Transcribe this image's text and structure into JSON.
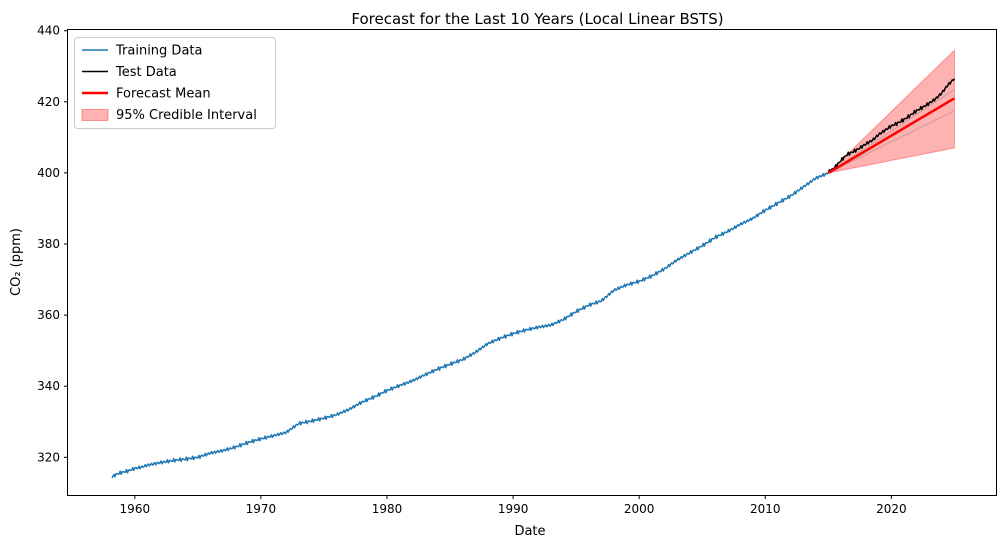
{
  "chart_data": {
    "type": "line",
    "title": "Forecast for the Last 10 Years (Local Linear BSTS)",
    "xlabel": "Date",
    "ylabel": "CO₂ (ppm)",
    "xlim": [
      1954.7,
      2028.3
    ],
    "ylim": [
      309.4,
      440.2
    ],
    "x_ticks": [
      1960,
      1970,
      1980,
      1990,
      2000,
      2010,
      2020
    ],
    "y_ticks": [
      320,
      340,
      360,
      380,
      400,
      420,
      440
    ],
    "grid": false,
    "legend_position": "top-left",
    "series": [
      {
        "name": "Training Data",
        "color": "#1f77b4",
        "x": [
          1958.2,
          1958.5,
          1959,
          1959.5,
          1960,
          1960.5,
          1961,
          1962,
          1963,
          1964,
          1965,
          1966,
          1967,
          1968,
          1969,
          1970,
          1971,
          1972,
          1973,
          1974,
          1975,
          1976,
          1977,
          1978,
          1979,
          1980,
          1981,
          1982,
          1983,
          1984,
          1985,
          1986,
          1987,
          1988,
          1989,
          1990,
          1991,
          1992,
          1993,
          1994,
          1995,
          1996,
          1997,
          1998,
          1999,
          2000,
          2001,
          2002,
          2003,
          2004,
          2005,
          2006,
          2007,
          2008,
          2009,
          2010,
          2011,
          2012,
          2013,
          2014,
          2015
        ],
        "values": [
          314.5,
          315.2,
          315.8,
          316.2,
          316.9,
          317.2,
          317.8,
          318.5,
          319.1,
          319.5,
          320.0,
          321.2,
          321.9,
          322.9,
          324.2,
          325.2,
          326.1,
          327.0,
          329.5,
          330.2,
          331.0,
          332.0,
          333.5,
          335.5,
          337.0,
          338.8,
          340.2,
          341.5,
          343.2,
          344.8,
          346.2,
          347.5,
          349.5,
          352.0,
          353.5,
          354.8,
          355.8,
          356.6,
          357.2,
          358.8,
          361.0,
          362.8,
          364.0,
          367.0,
          368.5,
          369.5,
          371.0,
          373.0,
          375.5,
          377.5,
          379.5,
          381.8,
          383.5,
          385.5,
          387.2,
          389.5,
          391.5,
          393.5,
          396.0,
          398.5,
          400.0
        ]
      },
      {
        "name": "Test Data",
        "color": "#000000",
        "x": [
          2015,
          2015.5,
          2016,
          2016.5,
          2017,
          2017.5,
          2018,
          2018.5,
          2019,
          2019.5,
          2020,
          2020.5,
          2021,
          2021.5,
          2022,
          2022.5,
          2023,
          2023.5,
          2024,
          2024.5,
          2025
        ],
        "values": [
          400.2,
          401.5,
          403.5,
          405.2,
          406.0,
          407.0,
          408.2,
          409.2,
          410.8,
          412.0,
          413.2,
          414.0,
          415.0,
          416.2,
          417.5,
          418.5,
          419.6,
          420.8,
          422.5,
          424.8,
          426.5
        ]
      },
      {
        "name": "Forecast Mean",
        "color": "#ff0000",
        "x": [
          2015,
          2025
        ],
        "values": [
          400.0,
          421.0
        ]
      }
    ],
    "interval": {
      "name": "95% Credible Interval",
      "color": "#ff0000",
      "x": [
        2015,
        2025
      ],
      "upper": [
        400.0,
        434.5
      ],
      "lower": [
        400.0,
        407.0
      ],
      "inner_upper": [
        400.0,
        423.5
      ],
      "inner_lower": [
        400.0,
        417.5
      ]
    }
  }
}
